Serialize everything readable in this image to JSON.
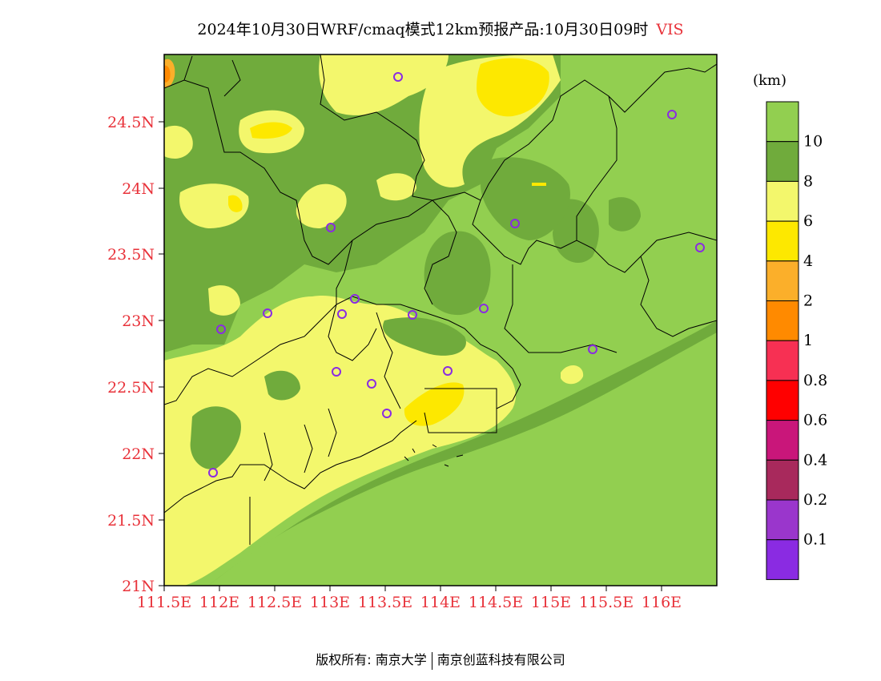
{
  "title": {
    "main": "2024年10月30日WRF/cmaq模式12km预报产品:10月30日09时",
    "variable": "VIS"
  },
  "axes": {
    "lat_ticks": [
      "24.5N",
      "24N",
      "23.5N",
      "23N",
      "22.5N",
      "22N",
      "21.5N",
      "21N"
    ],
    "lon_ticks": [
      "111.5E",
      "112E",
      "112.5E",
      "113E",
      "113.5E",
      "114E",
      "114.5E",
      "115E",
      "115.5E",
      "116E"
    ]
  },
  "legend": {
    "unit": "(km)",
    "levels": [
      {
        "label": "10",
        "color": "#92cf50"
      },
      {
        "label": "8",
        "color": "#70ab3c"
      },
      {
        "label": "6",
        "color": "#f3f76c"
      },
      {
        "label": "4",
        "color": "#fde800"
      },
      {
        "label": "2",
        "color": "#fbaf2a"
      },
      {
        "label": "1",
        "color": "#ff8a00"
      },
      {
        "label": "0.8",
        "color": "#f73053"
      },
      {
        "label": "0.6",
        "color": "#ff0000"
      },
      {
        "label": "0.4",
        "color": "#c9167a"
      },
      {
        "label": "0.2",
        "color": "#a8295c"
      },
      {
        "label": "0.1",
        "color": "#9a36cc"
      },
      {
        "label": "",
        "color": "#8a2be2"
      }
    ]
  },
  "footer": {
    "left": "版权所有: 南京大学",
    "right": "南京创蓝科技有限公司"
  }
}
